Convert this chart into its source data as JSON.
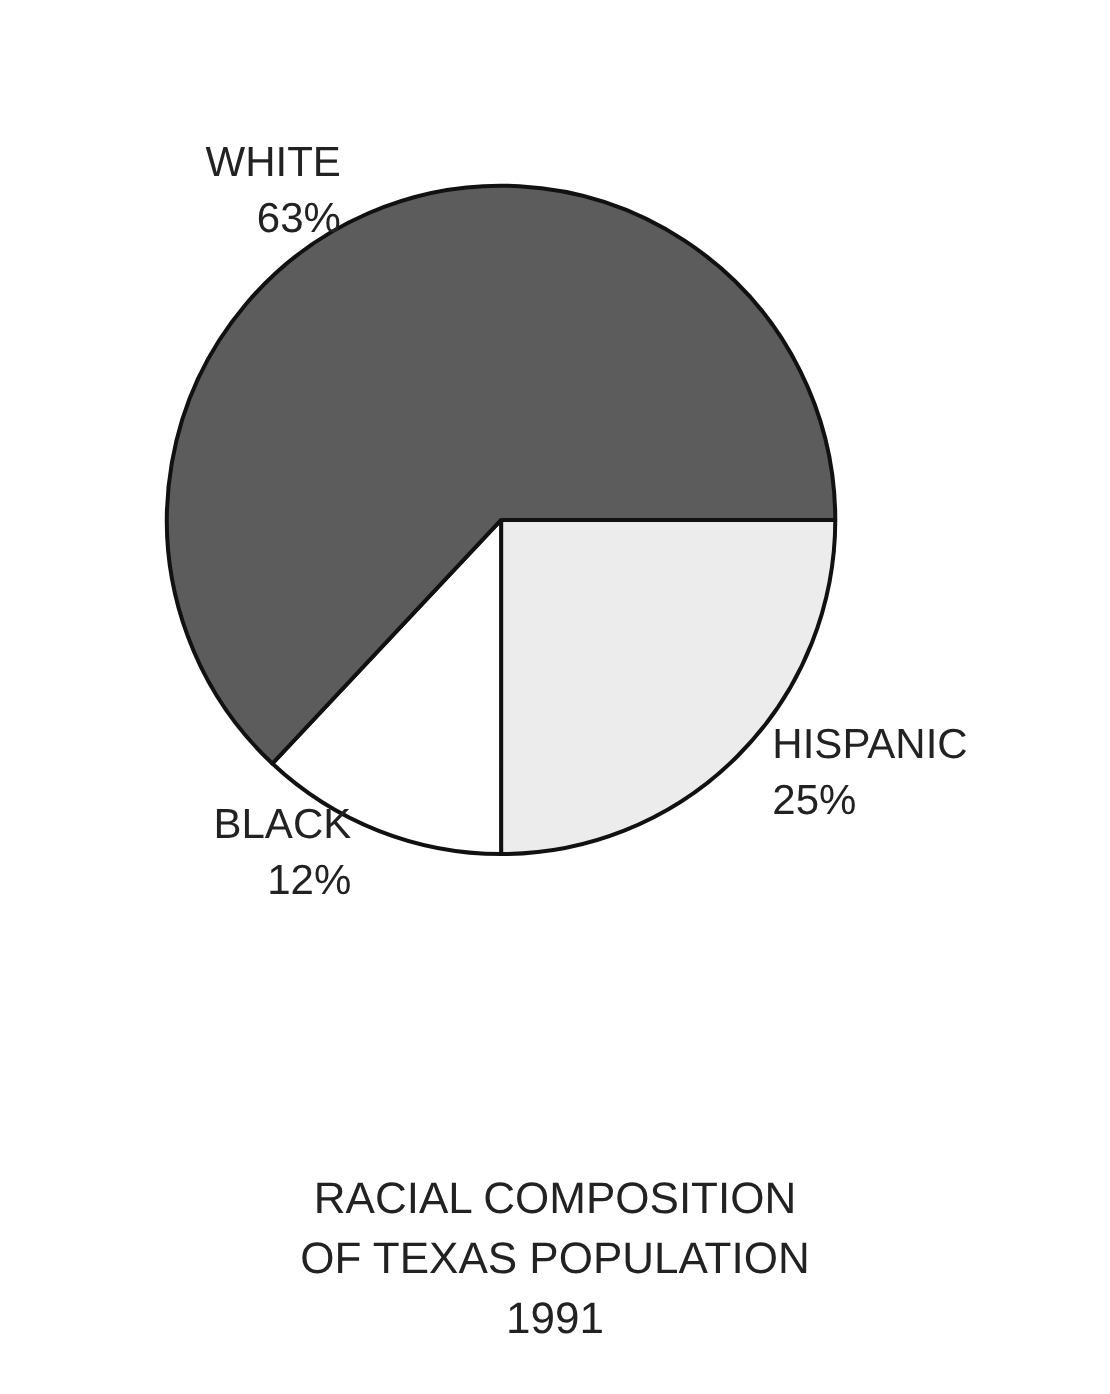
{
  "chart_data": {
    "type": "pie",
    "title": "RACIAL COMPOSITION\nOF TEXAS POPULATION\n1991",
    "categories": [
      "HISPANIC",
      "BLACK",
      "WHITE"
    ],
    "values": [
      25,
      12,
      63
    ],
    "colors": [
      "#ececec",
      "#ffffff",
      "#5c5c5c"
    ],
    "value_labels": [
      "25%",
      "12%",
      "63%"
    ],
    "legend": false
  }
}
